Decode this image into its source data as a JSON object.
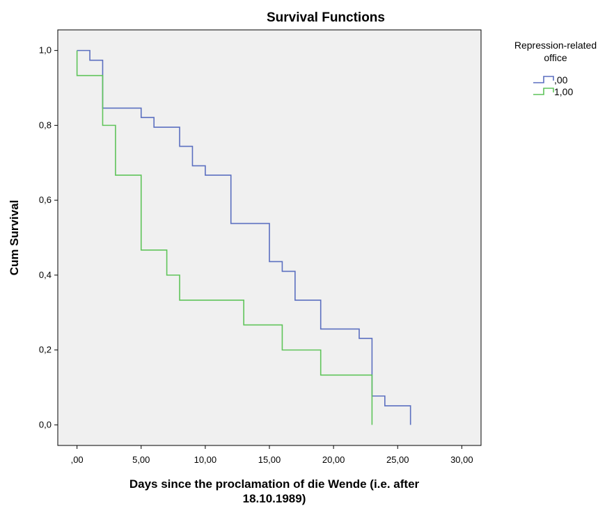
{
  "chart_data": {
    "type": "line",
    "step": true,
    "title": "Survival Functions",
    "xlabel_lines": [
      "Days since the proclamation of die Wende (i.e. after",
      "18.10.1989)"
    ],
    "ylabel": "Cum Survival",
    "xlim": [
      -1.5,
      31.5
    ],
    "ylim": [
      -0.055,
      1.055
    ],
    "xticks": [
      0,
      5,
      10,
      15,
      20,
      25,
      30
    ],
    "xtick_labels": [
      ",00",
      "5,00",
      "10,00",
      "15,00",
      "20,00",
      "25,00",
      "30,00"
    ],
    "yticks": [
      0,
      0.2,
      0.4,
      0.6,
      0.8,
      1.0
    ],
    "ytick_labels": [
      "0,0",
      "0,2",
      "0,4",
      "0,6",
      "0,8",
      "1,0"
    ],
    "grid": false,
    "plot_background": "#f0f0f0",
    "legend": {
      "title_lines": [
        "Repression-related",
        "office"
      ],
      "placement": "outside-right-top"
    },
    "series": [
      {
        "name": ",00",
        "color": "#5b6fc0",
        "x": [
          0,
          1,
          2,
          5,
          6,
          8,
          9,
          10,
          12,
          15,
          16,
          17,
          19,
          22,
          23,
          24,
          26
        ],
        "y": [
          1.0,
          0.974,
          0.846,
          0.821,
          0.795,
          0.744,
          0.692,
          0.667,
          0.538,
          0.436,
          0.41,
          0.333,
          0.256,
          0.231,
          0.077,
          0.051,
          0.0
        ]
      },
      {
        "name": "1,00",
        "color": "#5fc45a",
        "x": [
          0,
          2,
          3,
          5,
          7,
          8,
          13,
          16,
          19,
          23
        ],
        "y": [
          0.933,
          0.8,
          0.667,
          0.467,
          0.4,
          0.333,
          0.267,
          0.2,
          0.133,
          0.0
        ]
      }
    ]
  }
}
